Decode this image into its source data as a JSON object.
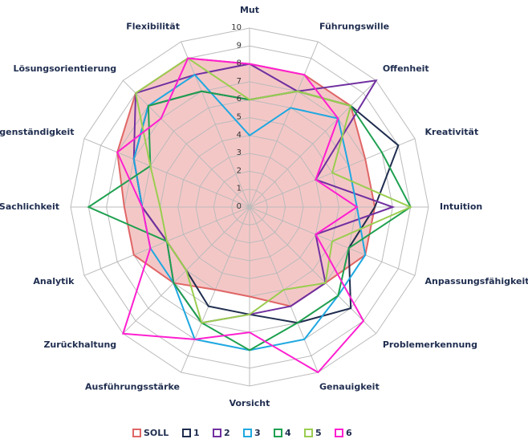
{
  "chart_data": {
    "type": "radar",
    "categories": [
      "Mut",
      "Führungswille",
      "Offenheit",
      "Kreativität",
      "Intuition",
      "Anpassungsfähigkeit",
      "Problemerkennung",
      "Genauigkeit",
      "Vorsicht",
      "Ausführungsstärke",
      "Zurückhaltung",
      "Analytik",
      "Sachlichkeit",
      "Eigenständigkeit",
      "Lösungsorientierung",
      "Flexibilität"
    ],
    "ylim": [
      0,
      10
    ],
    "yticks": [
      0,
      1,
      2,
      3,
      4,
      5,
      6,
      7,
      8,
      9,
      10
    ],
    "grid": true,
    "legend": "bottom",
    "series": [
      {
        "name": "SOLL",
        "color": "#e06666",
        "fill": "#f4c7c7",
        "values": [
          8,
          8,
          8,
          7,
          7,
          7,
          6,
          6,
          5,
          5,
          6,
          7,
          7,
          8,
          9,
          9
        ]
      },
      {
        "name": "1",
        "color": "#1f2d4f",
        "values": [
          6,
          7,
          8,
          9,
          7,
          6,
          8,
          7,
          6,
          6,
          5,
          5,
          6,
          7,
          8,
          7
        ]
      },
      {
        "name": "2",
        "color": "#7030a0",
        "values": [
          8,
          7,
          10,
          4,
          8,
          4,
          6,
          6,
          6,
          7,
          6,
          5,
          6,
          7,
          9,
          8
        ]
      },
      {
        "name": "3",
        "color": "#1fa8e0",
        "values": [
          4,
          6,
          7,
          6,
          6,
          7,
          7,
          8,
          8,
          8,
          6,
          6,
          6,
          7,
          8,
          8
        ]
      },
      {
        "name": "4",
        "color": "#1fa050",
        "values": [
          6,
          7,
          8,
          8,
          9,
          6,
          7,
          7,
          8,
          7,
          6,
          5,
          9,
          6,
          8,
          7
        ]
      },
      {
        "name": "5",
        "color": "#9acd50",
        "values": [
          6,
          7,
          8,
          5,
          9,
          5,
          6,
          5,
          6,
          7,
          5,
          5,
          5,
          6,
          9,
          9
        ]
      },
      {
        "name": "6",
        "color": "#ff1fd0",
        "values": [
          8,
          8,
          7,
          4,
          6,
          4,
          9,
          10,
          7,
          8,
          10,
          6,
          6,
          8,
          7,
          9
        ]
      }
    ]
  }
}
